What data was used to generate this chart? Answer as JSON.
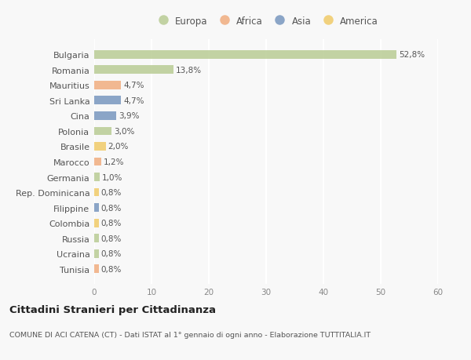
{
  "countries": [
    "Bulgaria",
    "Romania",
    "Mauritius",
    "Sri Lanka",
    "Cina",
    "Polonia",
    "Brasile",
    "Marocco",
    "Germania",
    "Rep. Dominicana",
    "Filippine",
    "Colombia",
    "Russia",
    "Ucraina",
    "Tunisia"
  ],
  "values": [
    52.8,
    13.8,
    4.7,
    4.7,
    3.9,
    3.0,
    2.0,
    1.2,
    1.0,
    0.8,
    0.8,
    0.8,
    0.8,
    0.8,
    0.8
  ],
  "labels": [
    "52,8%",
    "13,8%",
    "4,7%",
    "4,7%",
    "3,9%",
    "3,0%",
    "2,0%",
    "1,2%",
    "1,0%",
    "0,8%",
    "0,8%",
    "0,8%",
    "0,8%",
    "0,8%",
    "0,8%"
  ],
  "continents": [
    "Europa",
    "Europa",
    "Africa",
    "Asia",
    "Asia",
    "Europa",
    "America",
    "Africa",
    "Europa",
    "America",
    "Asia",
    "America",
    "Europa",
    "Europa",
    "Africa"
  ],
  "continent_colors": {
    "Europa": "#b5c98e",
    "Africa": "#f0a878",
    "Asia": "#7090bb",
    "America": "#f0c860"
  },
  "legend_entries": [
    "Europa",
    "Africa",
    "Asia",
    "America"
  ],
  "title": "Cittadini Stranieri per Cittadinanza",
  "subtitle": "COMUNE DI ACI CATENA (CT) - Dati ISTAT al 1° gennaio di ogni anno - Elaborazione TUTTITALIA.IT",
  "xlim": [
    0,
    60
  ],
  "xticks": [
    0,
    10,
    20,
    30,
    40,
    50,
    60
  ],
  "background_color": "#f8f8f8",
  "plot_bg_color": "#f8f8f8",
  "bar_alpha": 0.8,
  "grid_color": "#ffffff"
}
